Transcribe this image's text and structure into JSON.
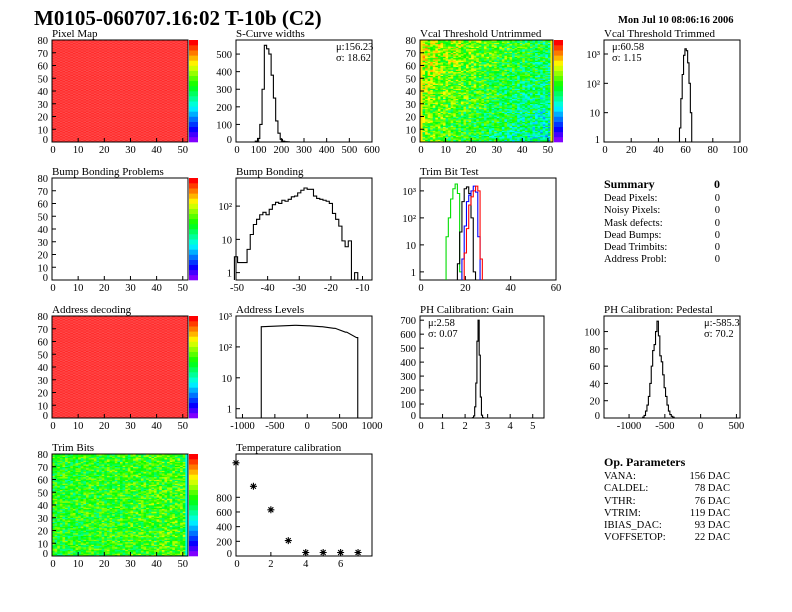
{
  "header": {
    "title": "M0105-060707.16:02 T-10b (C2)",
    "date": "Mon Jul 10 08:06:16 2006"
  },
  "summary": {
    "title": "Summary",
    "total": "0",
    "rows": [
      {
        "label": "Dead Pixels:",
        "value": "0"
      },
      {
        "label": "Noisy Pixels:",
        "value": "0"
      },
      {
        "label": "Mask defects:",
        "value": "0"
      },
      {
        "label": "Dead Bumps:",
        "value": "0"
      },
      {
        "label": "Dead Trimbits:",
        "value": "0"
      },
      {
        "label": "Address Probl:",
        "value": "0"
      }
    ]
  },
  "op_parameters": {
    "title": "Op. Parameters",
    "rows": [
      {
        "label": "VANA:",
        "value": "156 DAC"
      },
      {
        "label": "CALDEL:",
        "value": "78 DAC"
      },
      {
        "label": "VTHR:",
        "value": "76 DAC"
      },
      {
        "label": "VTRIM:",
        "value": "119 DAC"
      },
      {
        "label": "IBIAS_DAC:",
        "value": "93 DAC"
      },
      {
        "label": "VOFFSETOP:",
        "value": "22 DAC"
      }
    ]
  },
  "colors": {
    "hist": "#000000",
    "trim_series": [
      "#00dd00",
      "#000000",
      "#0000ff",
      "#ff0000"
    ]
  },
  "chart_data": [
    {
      "id": "pixel-map",
      "type": "heatmap",
      "title": "Pixel Map",
      "xlim": [
        0,
        52
      ],
      "ylim": [
        0,
        80
      ],
      "xticks": [
        0,
        10,
        20,
        30,
        40,
        50
      ],
      "yticks": [
        0,
        10,
        20,
        30,
        40,
        50,
        60,
        70,
        80
      ],
      "zlim": [
        0,
        10
      ],
      "pattern": "uniform-max"
    },
    {
      "id": "s-curve-widths",
      "type": "bar",
      "title": "S-Curve widths",
      "stats": [
        "μ:156.23",
        "σ: 18.62"
      ],
      "xlim": [
        0,
        600
      ],
      "ylim": [
        0,
        580
      ],
      "xticks": [
        0,
        100,
        200,
        300,
        400,
        500,
        600
      ],
      "yticks": [
        0,
        100,
        200,
        300,
        400,
        500
      ],
      "log": false,
      "series": [
        {
          "x": [
            90,
            100,
            110,
            120,
            130,
            140,
            150,
            160,
            170,
            180,
            190,
            200,
            210,
            220,
            230
          ],
          "values": [
            5,
            20,
            100,
            300,
            550,
            530,
            500,
            380,
            250,
            120,
            50,
            15,
            5,
            2,
            1
          ],
          "binw": 10
        }
      ]
    },
    {
      "id": "vcal-untrimmed",
      "type": "heatmap",
      "title": "Vcal Threshold Untrimmed",
      "xlim": [
        0,
        52
      ],
      "ylim": [
        0,
        80
      ],
      "xticks": [
        0,
        10,
        20,
        30,
        40,
        50
      ],
      "yticks": [
        0,
        10,
        20,
        30,
        40,
        50,
        60,
        70,
        80
      ],
      "zlim": [
        90,
        120
      ],
      "pattern": "gradient"
    },
    {
      "id": "vcal-trimmed",
      "type": "bar",
      "title": "Vcal Threshold Trimmed",
      "stats": [
        "μ:60.58",
        "σ: 1.15"
      ],
      "xlim": [
        0,
        100
      ],
      "ylim": [
        1,
        3000
      ],
      "xticks": [
        0,
        20,
        40,
        60,
        80,
        100
      ],
      "yticks": [
        1,
        10,
        100,
        1000
      ],
      "log": true,
      "series": [
        {
          "x": [
            56,
            57,
            58,
            59,
            60,
            61,
            62,
            63,
            64,
            65
          ],
          "values": [
            3,
            30,
            200,
            900,
            1500,
            1300,
            500,
            100,
            10,
            1
          ],
          "binw": 1
        }
      ]
    },
    {
      "id": "bump-bonding-problems",
      "type": "heatmap",
      "title": "Bump Bonding Problems",
      "xlim": [
        0,
        52
      ],
      "ylim": [
        0,
        80
      ],
      "xticks": [
        0,
        10,
        20,
        30,
        40,
        50
      ],
      "yticks": [
        0,
        10,
        20,
        30,
        40,
        50,
        60,
        70,
        80
      ],
      "zlim": [
        0,
        1
      ],
      "pattern": "empty"
    },
    {
      "id": "bump-bonding",
      "type": "bar",
      "title": "Bump Bonding",
      "xlim": [
        -50,
        -7
      ],
      "ylim": [
        0.6,
        700
      ],
      "xticks": [
        -50,
        -40,
        -30,
        -20,
        -10
      ],
      "yticks": [
        1,
        10,
        100
      ],
      "log": true,
      "series": [
        {
          "x": [
            -50,
            -49,
            -48,
            -47,
            -46,
            -45,
            -44,
            -43,
            -42,
            -41,
            -40,
            -39,
            -38,
            -37,
            -36,
            -35,
            -34,
            -33,
            -32,
            -31,
            -30,
            -29,
            -28,
            -27,
            -26,
            -25,
            -24,
            -23,
            -22,
            -21,
            -20,
            -19,
            -18,
            -17,
            -16,
            -15,
            -14,
            -13,
            -12,
            -11
          ],
          "values": [
            3,
            2,
            2,
            2,
            5,
            14,
            28,
            40,
            55,
            65,
            55,
            80,
            110,
            130,
            120,
            150,
            140,
            160,
            190,
            200,
            250,
            300,
            350,
            320,
            320,
            200,
            170,
            160,
            150,
            140,
            120,
            60,
            40,
            25,
            9,
            6,
            9,
            0,
            1,
            0
          ],
          "binw": 1
        }
      ]
    },
    {
      "id": "trim-bit-test",
      "type": "bar",
      "title": "Trim Bit Test",
      "xlim": [
        0,
        60
      ],
      "ylim": [
        0.5,
        3000
      ],
      "xticks": [
        0,
        20,
        40,
        60
      ],
      "yticks": [
        1,
        10,
        100,
        1000
      ],
      "log": true,
      "series": [
        {
          "x": [
            12,
            13,
            14,
            15,
            16,
            17,
            18
          ],
          "values": [
            20,
            100,
            500,
            1200,
            1800,
            800,
            1
          ],
          "binw": 1
        },
        {
          "x": [
            17,
            18,
            19,
            20,
            21,
            22,
            23,
            24
          ],
          "values": [
            2,
            30,
            400,
            1200,
            1400,
            800,
            100,
            1
          ],
          "binw": 1
        },
        {
          "x": [
            19,
            20,
            21,
            22,
            23,
            24,
            25,
            26
          ],
          "values": [
            3,
            50,
            400,
            700,
            1000,
            1500,
            900,
            20
          ],
          "binw": 1
        },
        {
          "x": [
            20,
            21,
            22,
            23,
            24,
            25,
            26,
            27
          ],
          "values": [
            5,
            40,
            300,
            600,
            1000,
            1500,
            1000,
            3
          ],
          "binw": 1
        }
      ]
    },
    {
      "id": "address-decoding",
      "type": "heatmap",
      "title": "Address decoding",
      "xlim": [
        0,
        52
      ],
      "ylim": [
        0,
        80
      ],
      "xticks": [
        0,
        10,
        20,
        30,
        40,
        50
      ],
      "yticks": [
        0,
        10,
        20,
        30,
        40,
        50,
        60,
        70,
        80
      ],
      "zlim": [
        0,
        1
      ],
      "pattern": "uniform-max"
    },
    {
      "id": "address-levels",
      "type": "bar",
      "title": "Address Levels",
      "xlim": [
        -1100,
        1000
      ],
      "ylim": [
        0.5,
        1000
      ],
      "xticks": [
        -1000,
        -500,
        0,
        500,
        1000
      ],
      "yticks": [
        1,
        10,
        100,
        1000
      ],
      "log": true,
      "series": [
        {
          "x": [
            -700,
            -180,
            20,
            220,
            420,
            600,
            770
          ],
          "values": [
            450,
            500,
            480,
            450,
            400,
            300,
            200
          ],
          "binw": 20
        }
      ]
    },
    {
      "id": "ph-gain",
      "type": "bar",
      "title": "PH Calibration: Gain",
      "stats": [
        "μ:2.58",
        "σ: 0.07"
      ],
      "xlim": [
        0,
        5.5
      ],
      "ylim": [
        0,
        730
      ],
      "xticks": [
        0,
        1,
        2,
        3,
        4,
        5
      ],
      "yticks": [
        0,
        100,
        200,
        300,
        400,
        500,
        600,
        700
      ],
      "log": false,
      "series": [
        {
          "x": [
            2.35,
            2.4,
            2.45,
            2.5,
            2.55,
            2.6,
            2.65,
            2.7,
            2.75,
            2.8
          ],
          "values": [
            2,
            15,
            80,
            250,
            550,
            700,
            450,
            150,
            20,
            2
          ],
          "binw": 0.05
        }
      ]
    },
    {
      "id": "ph-pedestal",
      "type": "bar",
      "title": "PH Calibration: Pedestal",
      "stats": [
        "μ:-585.3",
        "σ: 70.2"
      ],
      "xlim": [
        -1350,
        550
      ],
      "ylim": [
        0,
        118
      ],
      "xticks": [
        -1000,
        -500,
        0,
        500
      ],
      "yticks": [
        0,
        20,
        40,
        60,
        80,
        100
      ],
      "log": false,
      "series": [
        {
          "x": [
            -800,
            -780,
            -760,
            -740,
            -720,
            -700,
            -680,
            -660,
            -640,
            -620,
            -600,
            -580,
            -560,
            -540,
            -520,
            -500,
            -480,
            -460,
            -440,
            -420,
            -400,
            -380
          ],
          "values": [
            1,
            3,
            8,
            15,
            25,
            40,
            60,
            78,
            85,
            100,
            112,
            95,
            72,
            65,
            50,
            35,
            25,
            15,
            8,
            4,
            2,
            1
          ],
          "binw": 20
        }
      ]
    },
    {
      "id": "trim-bits",
      "type": "heatmap",
      "title": "Trim Bits",
      "xlim": [
        0,
        52
      ],
      "ylim": [
        0,
        80
      ],
      "xticks": [
        0,
        10,
        20,
        30,
        40,
        50
      ],
      "yticks": [
        0,
        10,
        20,
        30,
        40,
        50,
        60,
        70,
        80
      ],
      "zlim": [
        0,
        16
      ],
      "pattern": "noise"
    },
    {
      "id": "temperature-calibration",
      "type": "scatter",
      "title": "Temperature calibration",
      "xlim": [
        0,
        7.8
      ],
      "ylim": [
        0,
        1390
      ],
      "xticks": [
        0,
        2,
        4,
        6
      ],
      "yticks": [
        0,
        200,
        400,
        600,
        800
      ],
      "log": false,
      "series": [
        {
          "x": [
            0,
            1,
            2,
            3,
            4,
            5,
            6,
            7
          ],
          "values": [
            1270,
            950,
            630,
            210,
            5,
            5,
            5,
            10
          ]
        }
      ]
    }
  ]
}
